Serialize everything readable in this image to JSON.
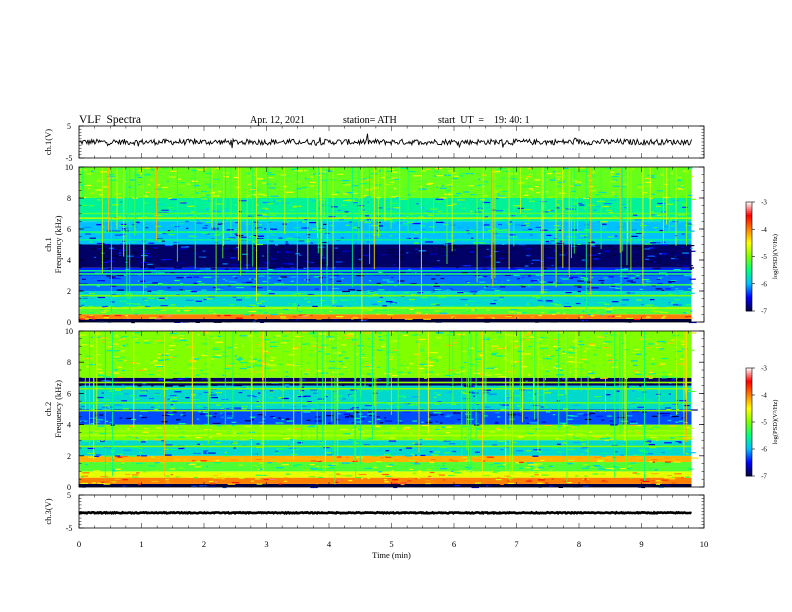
{
  "header": {
    "title": "VLF  Spectra",
    "date": "Apr. 12, 2021",
    "station": "station= ATH",
    "start_ut": "start  UT  =    19: 40: 1"
  },
  "colors": {
    "colormap": [
      "#000040",
      "#0000ff",
      "#00c0ff",
      "#00ff80",
      "#80ff00",
      "#ffff00",
      "#ff8000",
      "#ff0000",
      "#ffffff"
    ],
    "trace": "#000000",
    "frame": "#000000"
  },
  "chart_data": [
    {
      "type": "line",
      "panel": "ch1-voltage",
      "ylabel": "ch.1(V)",
      "ylim": [
        -5,
        5
      ],
      "yticks": [
        "5",
        "-5"
      ],
      "xlim": [
        0,
        10
      ],
      "note_mean": 0.0,
      "series": [
        {
          "amplitude_noise": 0.9
        }
      ]
    },
    {
      "type": "heatmap",
      "panel": "ch1-spectrogram",
      "ylabel": "ch.1\nFrequency  (kHz)",
      "ylim": [
        0,
        10
      ],
      "yticks": [
        "0",
        "2",
        "4",
        "6",
        "8",
        "10"
      ],
      "xlim": [
        0,
        10
      ],
      "data_extent_min": 9.8,
      "colorbar": {
        "label": "log(PSD)(V²/Hz)",
        "ticks": [
          "-3",
          "-4",
          "-5",
          "-6",
          "-7"
        ],
        "range": [
          -7,
          -3
        ]
      },
      "bands": [
        {
          "from": 0.0,
          "to": 0.2,
          "level": -7.0
        },
        {
          "from": 0.2,
          "to": 0.5,
          "level": -4.0
        },
        {
          "from": 0.5,
          "to": 1.0,
          "level": -5.2
        },
        {
          "from": 1.0,
          "to": 2.0,
          "level": -5.8
        },
        {
          "from": 2.0,
          "to": 3.0,
          "level": -6.2
        },
        {
          "from": 3.0,
          "to": 3.5,
          "level": -6.4
        },
        {
          "from": 3.5,
          "to": 5.0,
          "level": -6.9
        },
        {
          "from": 5.0,
          "to": 6.5,
          "level": -6.0
        },
        {
          "from": 6.5,
          "to": 8.0,
          "level": -5.6
        },
        {
          "from": 8.0,
          "to": 10.0,
          "level": -5.1
        }
      ],
      "lines": [
        {
          "freq": 0.9,
          "level": -4.8
        },
        {
          "freq": 1.7,
          "level": -5.0
        },
        {
          "freq": 2.4,
          "level": -5.3
        },
        {
          "freq": 3.1,
          "level": -5.4
        },
        {
          "freq": 3.3,
          "level": -5.6
        },
        {
          "freq": 5.3,
          "level": -5.6
        },
        {
          "freq": 5.8,
          "level": -5.4
        },
        {
          "freq": 6.7,
          "level": -4.8
        },
        {
          "freq": 7.0,
          "level": -5.2
        }
      ],
      "sferic_count": 90
    },
    {
      "type": "heatmap",
      "panel": "ch2-spectrogram",
      "ylabel": "ch.2\nFrequency  (kHz)",
      "ylim": [
        0,
        10
      ],
      "yticks": [
        "0",
        "2",
        "4",
        "6",
        "8",
        "10"
      ],
      "xlim": [
        0,
        10
      ],
      "data_extent_min": 9.8,
      "colorbar": {
        "label": "log(PSD)(V²/Hz)",
        "ticks": [
          "-3",
          "-4",
          "-5",
          "-6",
          "-7"
        ],
        "range": [
          -7,
          -3
        ]
      },
      "bands": [
        {
          "from": 0.0,
          "to": 0.2,
          "level": -7.0
        },
        {
          "from": 0.2,
          "to": 0.6,
          "level": -4.0
        },
        {
          "from": 0.6,
          "to": 1.0,
          "level": -4.6
        },
        {
          "from": 1.0,
          "to": 1.6,
          "level": -5.2
        },
        {
          "from": 1.6,
          "to": 2.0,
          "level": -4.2
        },
        {
          "from": 2.0,
          "to": 3.0,
          "level": -5.8
        },
        {
          "from": 3.0,
          "to": 4.0,
          "level": -5.0
        },
        {
          "from": 4.0,
          "to": 5.0,
          "level": -6.3
        },
        {
          "from": 5.0,
          "to": 6.5,
          "level": -5.8
        },
        {
          "from": 6.5,
          "to": 7.0,
          "level": -6.9
        },
        {
          "from": 7.0,
          "to": 10.0,
          "level": -5.0
        }
      ],
      "lines": [
        {
          "freq": 1.8,
          "level": -4.2
        },
        {
          "freq": 2.6,
          "level": -5.0
        },
        {
          "freq": 3.3,
          "level": -4.8
        },
        {
          "freq": 3.6,
          "level": -4.9
        },
        {
          "freq": 4.9,
          "level": -5.0
        },
        {
          "freq": 5.4,
          "level": -5.2
        },
        {
          "freq": 6.3,
          "level": -5.0
        },
        {
          "freq": 6.7,
          "level": -4.9
        }
      ],
      "sferic_count": 90
    },
    {
      "type": "line",
      "panel": "ch3-voltage",
      "ylabel": "ch.3(V)",
      "ylim": [
        -5,
        5
      ],
      "yticks": [
        "5",
        "-5"
      ],
      "xlim": [
        0,
        10
      ],
      "note_mean": -0.4,
      "series": [
        {
          "amplitude_noise": 0.15
        }
      ]
    }
  ],
  "xaxis": {
    "label": "Time  (min)",
    "ticks": [
      "0",
      "1",
      "2",
      "3",
      "4",
      "5",
      "6",
      "7",
      "8",
      "9",
      "10"
    ],
    "range": [
      0,
      10
    ]
  }
}
